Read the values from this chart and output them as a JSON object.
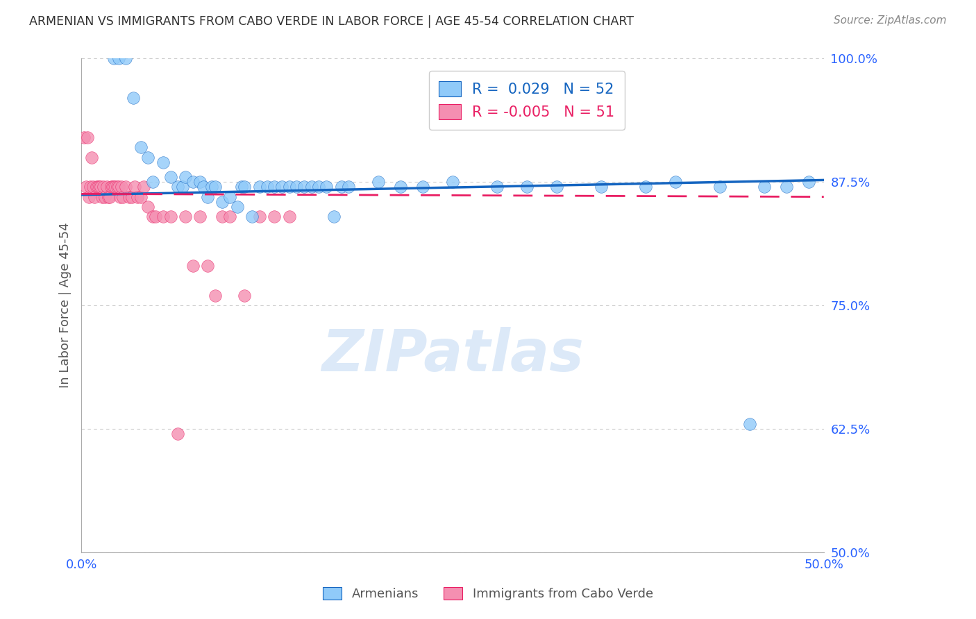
{
  "title": "ARMENIAN VS IMMIGRANTS FROM CABO VERDE IN LABOR FORCE | AGE 45-54 CORRELATION CHART",
  "source": "Source: ZipAtlas.com",
  "ylabel": "In Labor Force | Age 45-54",
  "legend_armenians": "Armenians",
  "legend_cabo_verde": "Immigrants from Cabo Verde",
  "R_armenians": 0.029,
  "N_armenians": 52,
  "R_cabo_verde": -0.005,
  "N_cabo_verde": 51,
  "xlim": [
    0.0,
    0.5
  ],
  "ylim": [
    0.5,
    1.0
  ],
  "yticks": [
    0.5,
    0.625,
    0.75,
    0.875,
    1.0
  ],
  "ytick_labels": [
    "50.0%",
    "62.5%",
    "75.0%",
    "87.5%",
    "100.0%"
  ],
  "xticks": [
    0.0,
    0.1,
    0.2,
    0.3,
    0.4,
    0.5
  ],
  "xtick_labels": [
    "0.0%",
    "",
    "",
    "",
    "",
    "50.0%"
  ],
  "title_color": "#333333",
  "source_color": "#888888",
  "axis_label_color": "#555555",
  "tick_color": "#2962ff",
  "grid_color": "#cccccc",
  "blue_color": "#90CAF9",
  "pink_color": "#F48FB1",
  "blue_line_color": "#1565C0",
  "pink_line_color": "#E91E63",
  "watermark_color": "#DCE9F8",
  "armenians_x": [
    0.022,
    0.025,
    0.03,
    0.035,
    0.04,
    0.045,
    0.048,
    0.055,
    0.06,
    0.065,
    0.068,
    0.07,
    0.075,
    0.08,
    0.082,
    0.085,
    0.088,
    0.09,
    0.095,
    0.1,
    0.105,
    0.108,
    0.11,
    0.115,
    0.12,
    0.125,
    0.13,
    0.135,
    0.14,
    0.145,
    0.15,
    0.155,
    0.16,
    0.165,
    0.17,
    0.175,
    0.18,
    0.2,
    0.215,
    0.23,
    0.25,
    0.28,
    0.3,
    0.32,
    0.35,
    0.38,
    0.4,
    0.43,
    0.45,
    0.46,
    0.475,
    0.49
  ],
  "armenians_y": [
    1.0,
    1.0,
    1.0,
    0.96,
    0.91,
    0.9,
    0.875,
    0.895,
    0.88,
    0.87,
    0.87,
    0.88,
    0.875,
    0.875,
    0.87,
    0.86,
    0.87,
    0.87,
    0.855,
    0.86,
    0.85,
    0.87,
    0.87,
    0.84,
    0.87,
    0.87,
    0.87,
    0.87,
    0.87,
    0.87,
    0.87,
    0.87,
    0.87,
    0.87,
    0.84,
    0.87,
    0.87,
    0.875,
    0.87,
    0.87,
    0.875,
    0.87,
    0.87,
    0.87,
    0.87,
    0.87,
    0.875,
    0.87,
    0.63,
    0.87,
    0.87,
    0.875
  ],
  "cabo_x": [
    0.002,
    0.003,
    0.004,
    0.005,
    0.006,
    0.007,
    0.008,
    0.009,
    0.01,
    0.011,
    0.012,
    0.013,
    0.014,
    0.015,
    0.016,
    0.017,
    0.018,
    0.019,
    0.02,
    0.021,
    0.022,
    0.023,
    0.024,
    0.025,
    0.026,
    0.027,
    0.028,
    0.03,
    0.032,
    0.034,
    0.036,
    0.038,
    0.04,
    0.042,
    0.045,
    0.048,
    0.05,
    0.055,
    0.06,
    0.065,
    0.07,
    0.075,
    0.08,
    0.085,
    0.09,
    0.095,
    0.1,
    0.11,
    0.12,
    0.13,
    0.14
  ],
  "cabo_y": [
    0.92,
    0.87,
    0.92,
    0.86,
    0.87,
    0.9,
    0.87,
    0.86,
    0.87,
    0.87,
    0.87,
    0.87,
    0.86,
    0.87,
    0.86,
    0.87,
    0.86,
    0.86,
    0.87,
    0.87,
    0.87,
    0.87,
    0.87,
    0.87,
    0.86,
    0.87,
    0.86,
    0.87,
    0.86,
    0.86,
    0.87,
    0.86,
    0.86,
    0.87,
    0.85,
    0.84,
    0.84,
    0.84,
    0.84,
    0.62,
    0.84,
    0.79,
    0.84,
    0.79,
    0.76,
    0.84,
    0.84,
    0.76,
    0.84,
    0.84,
    0.84
  ],
  "arm_trend_x": [
    0.0,
    0.5
  ],
  "arm_trend_y": [
    0.862,
    0.877
  ],
  "cabo_trend_x": [
    0.0,
    0.5
  ],
  "cabo_trend_y": [
    0.863,
    0.86
  ]
}
